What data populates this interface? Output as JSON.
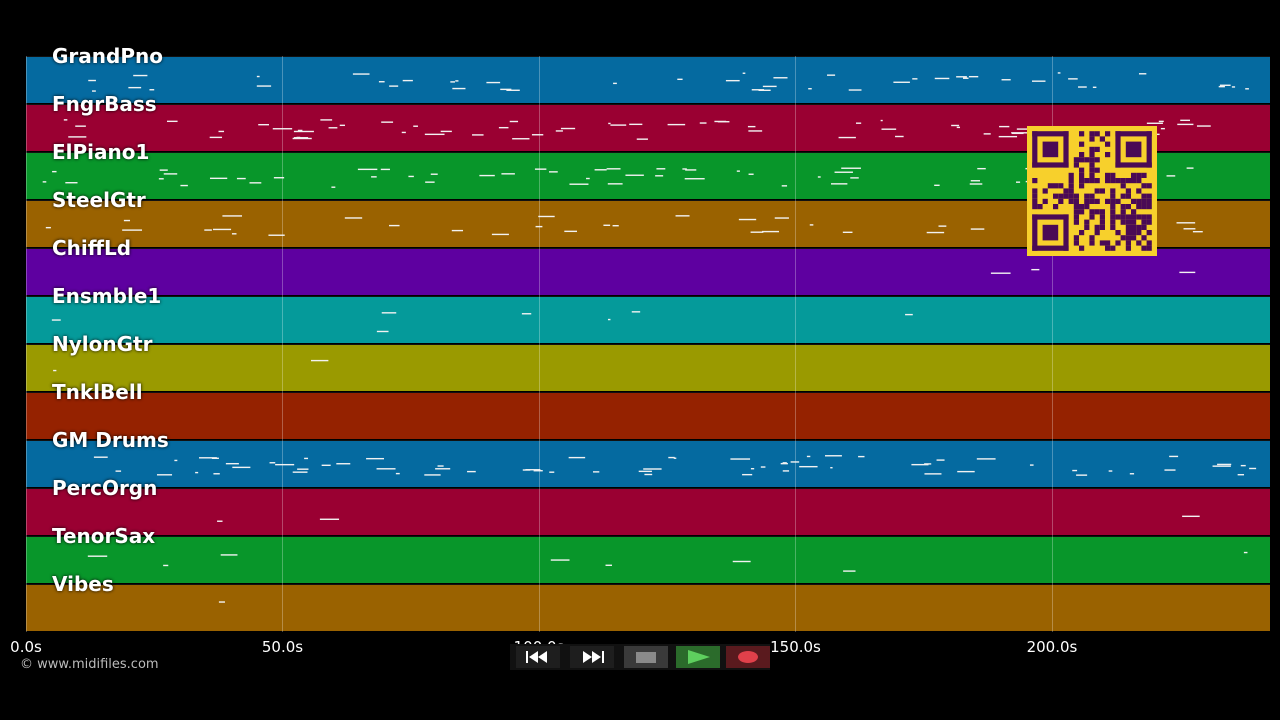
{
  "tracks": [
    {
      "name": "GrandPno",
      "color": "#056aa0",
      "density": 0.75
    },
    {
      "name": "FngrBass",
      "color": "#9a0032",
      "density": 0.9
    },
    {
      "name": "ElPiano1",
      "color": "#08962a",
      "density": 0.85
    },
    {
      "name": "SteelGtr",
      "color": "#9a6200",
      "density": 0.7
    },
    {
      "name": "ChiffLd",
      "color": "#5e00a0",
      "density": 0.15
    },
    {
      "name": "Ensmble1",
      "color": "#059a9a",
      "density": 0.25
    },
    {
      "name": "NylonGtr",
      "color": "#9a9a00",
      "density": 0.1
    },
    {
      "name": "TnklBell",
      "color": "#952200",
      "density": 0.05
    },
    {
      "name": "GM Drums",
      "color": "#056aa0",
      "density": 0.95
    },
    {
      "name": "PercOrgn",
      "color": "#9a0032",
      "density": 0.15
    },
    {
      "name": "TenorSax",
      "color": "#08962a",
      "density": 0.3
    },
    {
      "name": "Vibes",
      "color": "#9a6200",
      "density": 0.08
    }
  ],
  "timeline": {
    "ticks": [
      "0.0s",
      "50.0s",
      "100.0s",
      "150.0s",
      "200.0s"
    ],
    "tick_values": [
      0,
      50,
      100,
      150,
      200
    ],
    "max_seconds": 242.5
  },
  "copyright": "© www.midifiles.com",
  "transport": {
    "rewind": "rewind-icon",
    "fast_forward": "fast-forward-icon",
    "stop": "stop-icon",
    "play": "play-icon",
    "record": "record-icon",
    "play_color": "#5ecf5e",
    "record_color": "#e0404a"
  },
  "qr_color": "#4a0a55"
}
